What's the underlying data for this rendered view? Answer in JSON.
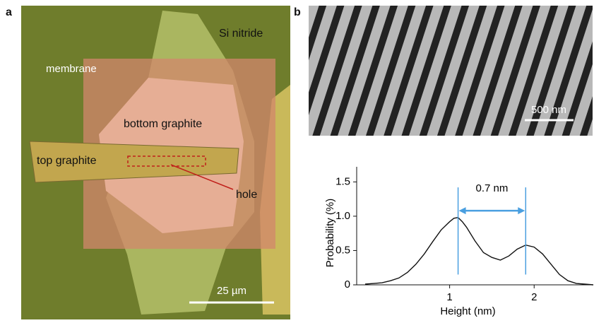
{
  "panel_a": {
    "letter": "a",
    "labels": [
      "Si nitride",
      "membrane",
      "bottom graphite",
      "top graphite",
      "hole"
    ],
    "scale_bar": "25 µm"
  },
  "panel_b": {
    "letter": "b",
    "scale_bar": "500 nm"
  },
  "chart_data": {
    "type": "line",
    "xlabel": "Height (nm)",
    "ylabel": "Probability (%)",
    "x": [
      0,
      0.1,
      0.2,
      0.3,
      0.4,
      0.5,
      0.6,
      0.7,
      0.8,
      0.9,
      1.0,
      1.05,
      1.1,
      1.15,
      1.2,
      1.3,
      1.4,
      1.5,
      1.6,
      1.7,
      1.8,
      1.9,
      2.0,
      2.1,
      2.2,
      2.3,
      2.4,
      2.5,
      2.6,
      2.7
    ],
    "values": [
      0.01,
      0.02,
      0.03,
      0.06,
      0.1,
      0.18,
      0.3,
      0.45,
      0.63,
      0.8,
      0.92,
      0.97,
      0.98,
      0.92,
      0.84,
      0.64,
      0.47,
      0.4,
      0.36,
      0.42,
      0.52,
      0.58,
      0.55,
      0.45,
      0.3,
      0.15,
      0.06,
      0.02,
      0.01,
      0
    ],
    "color": "#111111",
    "xlim": [
      -0.1,
      2.7
    ],
    "ylim": [
      0,
      1.72
    ],
    "xticks": [
      1,
      2
    ],
    "yticks": [
      0,
      0.5,
      {
        "value": 1,
        "label": "1.0"
      },
      1.5
    ],
    "annotation": {
      "text": "0.7 nm",
      "x": [
        1.1,
        1.9
      ],
      "color": "#4a9fe0"
    }
  }
}
